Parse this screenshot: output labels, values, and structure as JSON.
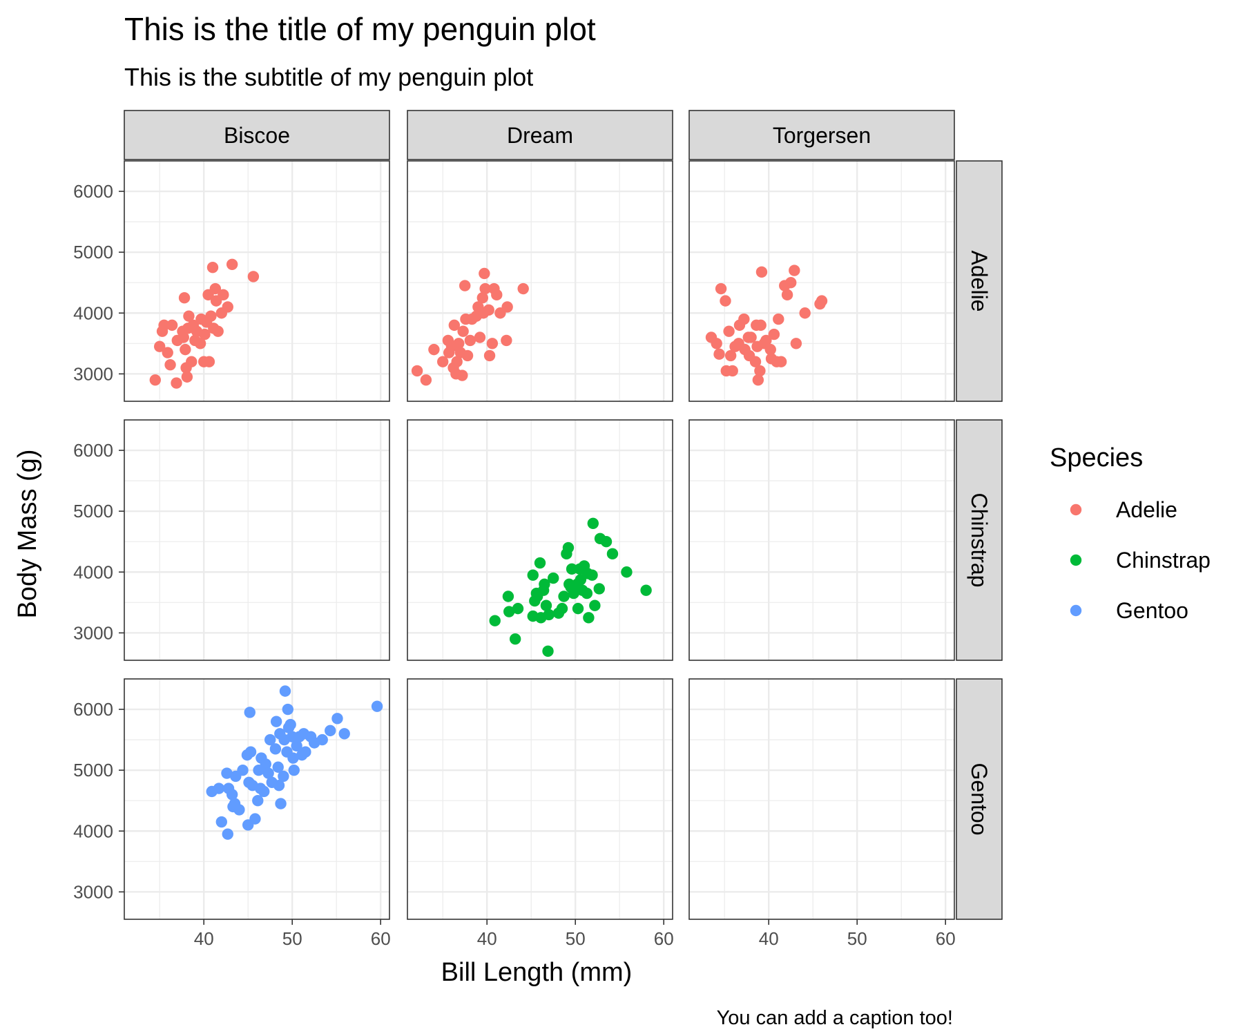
{
  "chart_data": {
    "type": "scatter",
    "title": "This is the title of my penguin plot",
    "subtitle": "This is the subtitle of my penguin plot",
    "caption": "You can add a caption too!",
    "xlabel": "Bill Length (mm)",
    "ylabel": "Body Mass (g)",
    "xlim": [
      31,
      61
    ],
    "ylim": [
      2550,
      6500
    ],
    "x_ticks": [
      40,
      50,
      60
    ],
    "x_minor": [
      35,
      45,
      55
    ],
    "y_ticks": [
      3000,
      4000,
      5000,
      6000
    ],
    "y_minor": [
      3500,
      4500,
      5500
    ],
    "facet_columns": [
      "Biscoe",
      "Dream",
      "Torgersen"
    ],
    "facet_rows": [
      "Adelie",
      "Chinstrap",
      "Gentoo"
    ],
    "legend": {
      "title": "Species",
      "position": "right",
      "entries": [
        {
          "label": "Adelie",
          "color": "#F8766D"
        },
        {
          "label": "Chinstrap",
          "color": "#00BA38"
        },
        {
          "label": "Gentoo",
          "color": "#619CFF"
        }
      ]
    },
    "grid": true,
    "series": [
      {
        "name": "Adelie",
        "row": "Adelie",
        "col": "Biscoe",
        "color": "#F8766D",
        "points": [
          [
            34.5,
            2900
          ],
          [
            35.0,
            3450
          ],
          [
            35.3,
            3700
          ],
          [
            35.5,
            3800
          ],
          [
            35.9,
            3350
          ],
          [
            36.2,
            3150
          ],
          [
            36.4,
            3800
          ],
          [
            36.9,
            2850
          ],
          [
            37.0,
            3550
          ],
          [
            37.6,
            3700
          ],
          [
            37.7,
            3600
          ],
          [
            37.8,
            4250
          ],
          [
            37.9,
            3400
          ],
          [
            38.0,
            3100
          ],
          [
            38.1,
            2950
          ],
          [
            38.2,
            3750
          ],
          [
            38.3,
            3950
          ],
          [
            38.6,
            3200
          ],
          [
            38.8,
            3800
          ],
          [
            39.0,
            3550
          ],
          [
            39.2,
            3700
          ],
          [
            39.6,
            3500
          ],
          [
            39.7,
            3900
          ],
          [
            40.0,
            3200
          ],
          [
            40.1,
            3650
          ],
          [
            40.3,
            3850
          ],
          [
            40.5,
            4300
          ],
          [
            40.6,
            3200
          ],
          [
            40.8,
            3950
          ],
          [
            41.0,
            4750
          ],
          [
            41.1,
            3750
          ],
          [
            41.3,
            4400
          ],
          [
            41.4,
            4200
          ],
          [
            41.6,
            3700
          ],
          [
            42.0,
            4000
          ],
          [
            42.2,
            4300
          ],
          [
            42.7,
            4100
          ],
          [
            43.2,
            4800
          ],
          [
            45.6,
            4600
          ]
        ]
      },
      {
        "name": "Adelie",
        "row": "Adelie",
        "col": "Dream",
        "color": "#F8766D",
        "points": [
          [
            32.1,
            3050
          ],
          [
            33.1,
            2900
          ],
          [
            34.0,
            3400
          ],
          [
            35.0,
            3200
          ],
          [
            35.6,
            3550
          ],
          [
            35.7,
            3350
          ],
          [
            36.0,
            3450
          ],
          [
            36.2,
            3100
          ],
          [
            36.3,
            3800
          ],
          [
            36.5,
            3000
          ],
          [
            36.6,
            3200
          ],
          [
            36.8,
            3500
          ],
          [
            37.0,
            3350
          ],
          [
            37.2,
            2975
          ],
          [
            37.3,
            3700
          ],
          [
            37.5,
            4450
          ],
          [
            37.6,
            3900
          ],
          [
            37.8,
            3300
          ],
          [
            38.1,
            3550
          ],
          [
            38.3,
            3900
          ],
          [
            38.8,
            3950
          ],
          [
            39.0,
            4100
          ],
          [
            39.2,
            3600
          ],
          [
            39.5,
            4250
          ],
          [
            39.6,
            4000
          ],
          [
            39.7,
            4650
          ],
          [
            39.8,
            4400
          ],
          [
            40.2,
            4050
          ],
          [
            40.3,
            3300
          ],
          [
            40.6,
            3500
          ],
          [
            40.8,
            4400
          ],
          [
            41.1,
            4300
          ],
          [
            41.5,
            4000
          ],
          [
            42.2,
            3550
          ],
          [
            42.3,
            4100
          ],
          [
            44.1,
            4400
          ]
        ]
      },
      {
        "name": "Adelie",
        "row": "Adelie",
        "col": "Torgersen",
        "color": "#F8766D",
        "points": [
          [
            33.5,
            3600
          ],
          [
            34.1,
            3500
          ],
          [
            34.4,
            3325
          ],
          [
            34.6,
            4400
          ],
          [
            35.1,
            4200
          ],
          [
            35.2,
            3050
          ],
          [
            35.5,
            3700
          ],
          [
            35.7,
            3300
          ],
          [
            35.9,
            3050
          ],
          [
            36.2,
            3450
          ],
          [
            36.6,
            3500
          ],
          [
            36.7,
            3800
          ],
          [
            37.2,
            3900
          ],
          [
            37.3,
            3400
          ],
          [
            37.7,
            3600
          ],
          [
            37.8,
            3300
          ],
          [
            38.0,
            3600
          ],
          [
            38.5,
            3200
          ],
          [
            38.6,
            3800
          ],
          [
            38.7,
            3450
          ],
          [
            38.8,
            2900
          ],
          [
            39.0,
            3050
          ],
          [
            39.1,
            3800
          ],
          [
            39.2,
            4675
          ],
          [
            39.5,
            3500
          ],
          [
            39.7,
            3550
          ],
          [
            40.2,
            3400
          ],
          [
            40.3,
            3250
          ],
          [
            40.6,
            3650
          ],
          [
            40.9,
            3200
          ],
          [
            41.1,
            3900
          ],
          [
            41.4,
            3200
          ],
          [
            41.8,
            4450
          ],
          [
            42.1,
            4300
          ],
          [
            42.5,
            4500
          ],
          [
            42.9,
            4700
          ],
          [
            43.1,
            3500
          ],
          [
            44.1,
            4000
          ],
          [
            45.8,
            4150
          ],
          [
            46.0,
            4200
          ]
        ]
      },
      {
        "name": "Chinstrap",
        "row": "Chinstrap",
        "col": "Dream",
        "color": "#00BA38",
        "points": [
          [
            40.9,
            3200
          ],
          [
            42.4,
            3600
          ],
          [
            42.5,
            3350
          ],
          [
            43.2,
            2900
          ],
          [
            43.5,
            3400
          ],
          [
            45.2,
            3275
          ],
          [
            45.2,
            3950
          ],
          [
            45.4,
            3525
          ],
          [
            45.6,
            3650
          ],
          [
            45.7,
            3600
          ],
          [
            46.0,
            4150
          ],
          [
            46.1,
            3250
          ],
          [
            46.4,
            3700
          ],
          [
            46.5,
            3800
          ],
          [
            46.7,
            3450
          ],
          [
            46.9,
            2700
          ],
          [
            47.0,
            3300
          ],
          [
            47.5,
            3900
          ],
          [
            48.1,
            3325
          ],
          [
            48.5,
            3400
          ],
          [
            48.7,
            3600
          ],
          [
            49.0,
            4300
          ],
          [
            49.2,
            4400
          ],
          [
            49.3,
            3800
          ],
          [
            49.5,
            3750
          ],
          [
            49.6,
            4050
          ],
          [
            49.8,
            3650
          ],
          [
            50.0,
            3775
          ],
          [
            50.2,
            3800
          ],
          [
            50.3,
            3400
          ],
          [
            50.5,
            4050
          ],
          [
            50.6,
            3875
          ],
          [
            50.8,
            3700
          ],
          [
            51.0,
            4100
          ],
          [
            51.3,
            3650
          ],
          [
            51.4,
            3975
          ],
          [
            51.5,
            3250
          ],
          [
            51.9,
            3950
          ],
          [
            52.0,
            4800
          ],
          [
            52.2,
            3450
          ],
          [
            52.7,
            3725
          ],
          [
            52.8,
            4550
          ],
          [
            53.5,
            4500
          ],
          [
            54.2,
            4300
          ],
          [
            55.8,
            4000
          ],
          [
            58.0,
            3700
          ]
        ]
      },
      {
        "name": "Gentoo",
        "row": "Gentoo",
        "col": "Biscoe",
        "color": "#619CFF",
        "points": [
          [
            40.9,
            4650
          ],
          [
            41.7,
            4700
          ],
          [
            42.0,
            4150
          ],
          [
            42.6,
            4950
          ],
          [
            42.7,
            3950
          ],
          [
            42.8,
            4700
          ],
          [
            43.2,
            4600
          ],
          [
            43.3,
            4400
          ],
          [
            43.5,
            4450
          ],
          [
            43.6,
            4900
          ],
          [
            44.0,
            4350
          ],
          [
            44.4,
            5000
          ],
          [
            44.9,
            5250
          ],
          [
            45.0,
            4100
          ],
          [
            45.1,
            4800
          ],
          [
            45.2,
            5950
          ],
          [
            45.3,
            5300
          ],
          [
            45.5,
            4750
          ],
          [
            45.8,
            4200
          ],
          [
            46.1,
            4500
          ],
          [
            46.2,
            5000
          ],
          [
            46.4,
            4700
          ],
          [
            46.5,
            5200
          ],
          [
            46.8,
            4650
          ],
          [
            47.0,
            5100
          ],
          [
            47.3,
            4950
          ],
          [
            47.5,
            5500
          ],
          [
            47.7,
            4800
          ],
          [
            48.1,
            5350
          ],
          [
            48.2,
            5800
          ],
          [
            48.4,
            5050
          ],
          [
            48.5,
            4750
          ],
          [
            48.6,
            5600
          ],
          [
            48.7,
            4450
          ],
          [
            49.0,
            4900
          ],
          [
            49.1,
            5500
          ],
          [
            49.2,
            6300
          ],
          [
            49.4,
            5300
          ],
          [
            49.5,
            6000
          ],
          [
            49.6,
            5700
          ],
          [
            49.8,
            5750
          ],
          [
            50.0,
            5550
          ],
          [
            50.1,
            5200
          ],
          [
            50.2,
            5000
          ],
          [
            50.5,
            5400
          ],
          [
            50.8,
            5550
          ],
          [
            51.1,
            5250
          ],
          [
            51.3,
            5600
          ],
          [
            51.5,
            5300
          ],
          [
            52.1,
            5550
          ],
          [
            52.5,
            5450
          ],
          [
            53.4,
            5500
          ],
          [
            54.3,
            5650
          ],
          [
            55.1,
            5850
          ],
          [
            55.9,
            5600
          ],
          [
            59.6,
            6050
          ]
        ]
      }
    ]
  }
}
